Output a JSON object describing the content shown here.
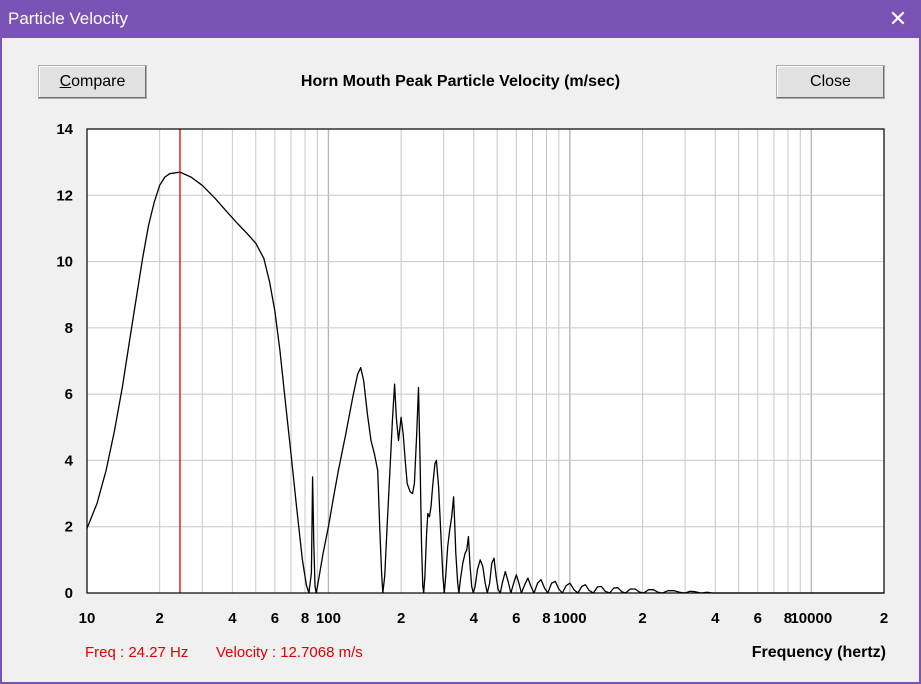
{
  "window": {
    "title": "Particle Velocity",
    "close_glyph": "✕"
  },
  "toolbar": {
    "compare_label": "Compare",
    "compare_accesskey": "C",
    "compare_rest": "ompare",
    "close_label": "Close"
  },
  "readout": {
    "freq": "Freq : 24.27 Hz",
    "velocity": "Velocity : 12.7068 m/s"
  },
  "colors": {
    "cursor": "#e00000",
    "readout_text": "#e00000",
    "grid": "#c8c8c8",
    "curve": "#000000"
  },
  "chart_data": {
    "type": "line",
    "title": "Horn Mouth Peak Particle Velocity (m/sec)",
    "xlabel": "Frequency (hertz)",
    "ylabel": "",
    "x_scale": "log",
    "xlim": [
      10,
      20000
    ],
    "ylim": [
      0,
      14
    ],
    "grid": true,
    "y_ticks": [
      "0",
      "2",
      "4",
      "6",
      "8",
      "10",
      "12",
      "14"
    ],
    "x_ticks": [
      {
        "value": 10,
        "label": "10"
      },
      {
        "value": 20,
        "label": "2"
      },
      {
        "value": 40,
        "label": "4"
      },
      {
        "value": 60,
        "label": "6"
      },
      {
        "value": 80,
        "label": "8"
      },
      {
        "value": 100,
        "label": "100"
      },
      {
        "value": 200,
        "label": "2"
      },
      {
        "value": 400,
        "label": "4"
      },
      {
        "value": 600,
        "label": "6"
      },
      {
        "value": 800,
        "label": "8"
      },
      {
        "value": 1000,
        "label": "1000"
      },
      {
        "value": 2000,
        "label": "2"
      },
      {
        "value": 4000,
        "label": "4"
      },
      {
        "value": 6000,
        "label": "6"
      },
      {
        "value": 8000,
        "label": "8"
      },
      {
        "value": 10000,
        "label": "10000"
      },
      {
        "value": 20000,
        "label": "2"
      }
    ],
    "cursor": {
      "x": 24.27,
      "y": 12.7068
    },
    "series": [
      {
        "points": [
          [
            10,
            1.95
          ],
          [
            11,
            2.7
          ],
          [
            12,
            3.7
          ],
          [
            13,
            4.9
          ],
          [
            14,
            6.2
          ],
          [
            15,
            7.6
          ],
          [
            16,
            8.9
          ],
          [
            17,
            10.1
          ],
          [
            18,
            11.1
          ],
          [
            19,
            11.8
          ],
          [
            20,
            12.3
          ],
          [
            21,
            12.55
          ],
          [
            22,
            12.65
          ],
          [
            24.27,
            12.7
          ],
          [
            27,
            12.55
          ],
          [
            30,
            12.3
          ],
          [
            34,
            11.9
          ],
          [
            38,
            11.5
          ],
          [
            42,
            11.15
          ],
          [
            46,
            10.85
          ],
          [
            50,
            10.55
          ],
          [
            54,
            10.1
          ],
          [
            57,
            9.4
          ],
          [
            60,
            8.5
          ],
          [
            63,
            7.3
          ],
          [
            66,
            5.9
          ],
          [
            70,
            4.2
          ],
          [
            74,
            2.5
          ],
          [
            78,
            1.0
          ],
          [
            81,
            0.25
          ],
          [
            83,
            0
          ],
          [
            85,
            0.6
          ],
          [
            86,
            3.5
          ],
          [
            87,
            1.5
          ],
          [
            88,
            0.2
          ],
          [
            89,
            0
          ],
          [
            91,
            0.4
          ],
          [
            95,
            1.2
          ],
          [
            100,
            2.0
          ],
          [
            105,
            2.9
          ],
          [
            110,
            3.7
          ],
          [
            118,
            4.8
          ],
          [
            126,
            5.9
          ],
          [
            132,
            6.6
          ],
          [
            136,
            6.8
          ],
          [
            140,
            6.4
          ],
          [
            145,
            5.4
          ],
          [
            150,
            4.6
          ],
          [
            155,
            4.2
          ],
          [
            160,
            3.7
          ],
          [
            163,
            2.0
          ],
          [
            166,
            0.6
          ],
          [
            168,
            0
          ],
          [
            171,
            0.5
          ],
          [
            175,
            2.0
          ],
          [
            180,
            3.8
          ],
          [
            184,
            5.2
          ],
          [
            188,
            6.3
          ],
          [
            191,
            5.3
          ],
          [
            195,
            4.6
          ],
          [
            200,
            5.3
          ],
          [
            204,
            4.8
          ],
          [
            208,
            4.0
          ],
          [
            212,
            3.3
          ],
          [
            218,
            3.05
          ],
          [
            223,
            3.0
          ],
          [
            227,
            3.3
          ],
          [
            232,
            4.8
          ],
          [
            236,
            6.2
          ],
          [
            240,
            3.8
          ],
          [
            243,
            1.5
          ],
          [
            246,
            0.2
          ],
          [
            248,
            0
          ],
          [
            251,
            0.5
          ],
          [
            255,
            1.8
          ],
          [
            258,
            2.4
          ],
          [
            262,
            2.3
          ],
          [
            266,
            2.6
          ],
          [
            270,
            3.2
          ],
          [
            276,
            3.9
          ],
          [
            280,
            4.0
          ],
          [
            286,
            3.2
          ],
          [
            292,
            1.8
          ],
          [
            298,
            0.5
          ],
          [
            302,
            0
          ],
          [
            306,
            0.5
          ],
          [
            312,
            1.4
          ],
          [
            318,
            1.9
          ],
          [
            324,
            2.3
          ],
          [
            330,
            2.9
          ],
          [
            333,
            2.2
          ],
          [
            337,
            1.2
          ],
          [
            343,
            0.3
          ],
          [
            347,
            0
          ],
          [
            352,
            0.4
          ],
          [
            360,
            0.9
          ],
          [
            368,
            1.2
          ],
          [
            374,
            1.3
          ],
          [
            380,
            1.7
          ],
          [
            386,
            0.8
          ],
          [
            392,
            0.2
          ],
          [
            398,
            0
          ],
          [
            405,
            0.2
          ],
          [
            414,
            0.7
          ],
          [
            425,
            1.0
          ],
          [
            436,
            0.8
          ],
          [
            446,
            0.3
          ],
          [
            455,
            0
          ],
          [
            465,
            0.3
          ],
          [
            475,
            0.9
          ],
          [
            485,
            1.05
          ],
          [
            495,
            0.5
          ],
          [
            505,
            0.1
          ],
          [
            515,
            0
          ],
          [
            525,
            0.3
          ],
          [
            540,
            0.65
          ],
          [
            555,
            0.35
          ],
          [
            570,
            0
          ],
          [
            585,
            0.3
          ],
          [
            600,
            0.55
          ],
          [
            615,
            0.3
          ],
          [
            630,
            0
          ],
          [
            650,
            0.25
          ],
          [
            670,
            0.45
          ],
          [
            690,
            0.2
          ],
          [
            710,
            0
          ],
          [
            735,
            0.3
          ],
          [
            760,
            0.4
          ],
          [
            785,
            0.15
          ],
          [
            810,
            0
          ],
          [
            840,
            0.3
          ],
          [
            870,
            0.35
          ],
          [
            900,
            0.12
          ],
          [
            930,
            0
          ],
          [
            965,
            0.22
          ],
          [
            1000,
            0.3
          ],
          [
            1040,
            0.1
          ],
          [
            1080,
            0
          ],
          [
            1120,
            0.2
          ],
          [
            1160,
            0.25
          ],
          [
            1200,
            0.08
          ],
          [
            1250,
            0
          ],
          [
            1300,
            0.18
          ],
          [
            1350,
            0.2
          ],
          [
            1400,
            0.05
          ],
          [
            1460,
            0
          ],
          [
            1520,
            0.15
          ],
          [
            1580,
            0.16
          ],
          [
            1640,
            0.04
          ],
          [
            1700,
            0
          ],
          [
            1780,
            0.12
          ],
          [
            1860,
            0.12
          ],
          [
            1940,
            0.03
          ],
          [
            2020,
            0
          ],
          [
            2120,
            0.1
          ],
          [
            2220,
            0.1
          ],
          [
            2320,
            0.02
          ],
          [
            2420,
            0
          ],
          [
            2550,
            0.07
          ],
          [
            2700,
            0.07
          ],
          [
            2850,
            0.02
          ],
          [
            3000,
            0
          ],
          [
            3150,
            0.05
          ],
          [
            3300,
            0.04
          ],
          [
            3500,
            0
          ],
          [
            3700,
            0.02
          ],
          [
            3900,
            0
          ],
          [
            5000,
            0
          ],
          [
            10000,
            0
          ],
          [
            20000,
            0
          ]
        ]
      }
    ]
  }
}
